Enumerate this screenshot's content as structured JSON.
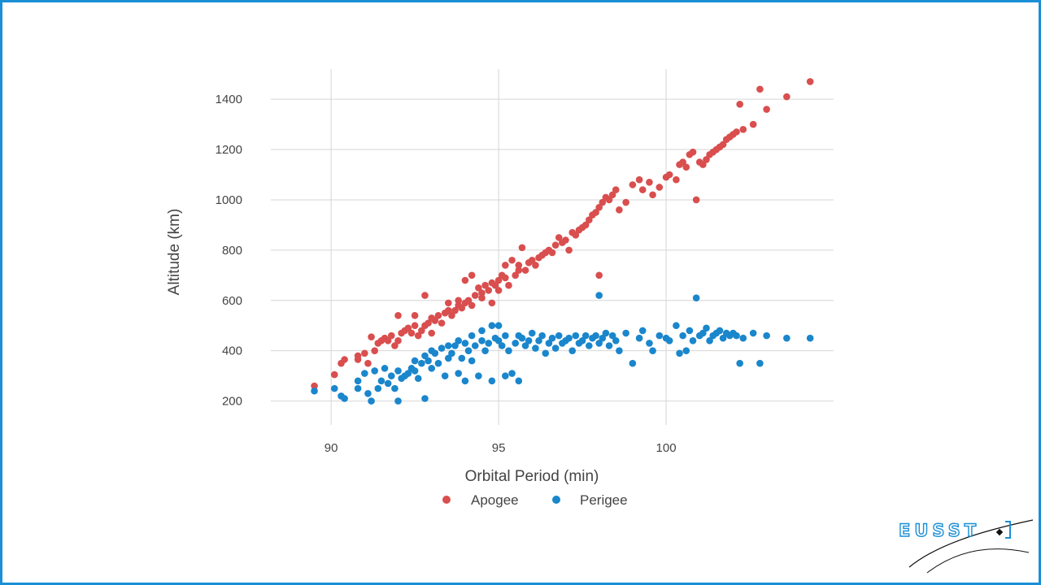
{
  "chart_data": {
    "type": "scatter",
    "xlabel": "Orbital Period (min)",
    "ylabel": "Altitude (km)",
    "xlim": [
      88.2,
      105.0
    ],
    "ylim": [
      105,
      1520
    ],
    "x_ticks": [
      90,
      95,
      100
    ],
    "y_ticks": [
      200,
      400,
      600,
      800,
      1000,
      1200,
      1400
    ],
    "grid": true,
    "legend_position": "bottom-center",
    "series": [
      {
        "name": "Apogee",
        "color": "#d94e4e",
        "points": [
          [
            89.5,
            260
          ],
          [
            90.1,
            305
          ],
          [
            90.3,
            350
          ],
          [
            90.4,
            365
          ],
          [
            90.8,
            365
          ],
          [
            90.8,
            380
          ],
          [
            91.0,
            390
          ],
          [
            91.1,
            350
          ],
          [
            91.2,
            455
          ],
          [
            91.3,
            400
          ],
          [
            91.4,
            430
          ],
          [
            91.5,
            440
          ],
          [
            91.6,
            450
          ],
          [
            91.7,
            440
          ],
          [
            91.8,
            460
          ],
          [
            91.9,
            420
          ],
          [
            92.0,
            540
          ],
          [
            92.0,
            440
          ],
          [
            92.1,
            470
          ],
          [
            92.2,
            480
          ],
          [
            92.3,
            490
          ],
          [
            92.4,
            470
          ],
          [
            92.5,
            500
          ],
          [
            92.5,
            540
          ],
          [
            92.6,
            460
          ],
          [
            92.7,
            480
          ],
          [
            92.8,
            500
          ],
          [
            92.8,
            620
          ],
          [
            92.9,
            510
          ],
          [
            93.0,
            530
          ],
          [
            93.0,
            470
          ],
          [
            93.1,
            520
          ],
          [
            93.2,
            540
          ],
          [
            93.3,
            510
          ],
          [
            93.4,
            550
          ],
          [
            93.5,
            560
          ],
          [
            93.5,
            590
          ],
          [
            93.6,
            540
          ],
          [
            93.7,
            560
          ],
          [
            93.8,
            580
          ],
          [
            93.8,
            600
          ],
          [
            93.9,
            570
          ],
          [
            94.0,
            590
          ],
          [
            94.0,
            680
          ],
          [
            94.1,
            600
          ],
          [
            94.2,
            580
          ],
          [
            94.2,
            700
          ],
          [
            94.3,
            620
          ],
          [
            94.4,
            650
          ],
          [
            94.5,
            610
          ],
          [
            94.5,
            630
          ],
          [
            94.6,
            660
          ],
          [
            94.7,
            640
          ],
          [
            94.8,
            670
          ],
          [
            94.8,
            590
          ],
          [
            94.9,
            660
          ],
          [
            95.0,
            680
          ],
          [
            95.0,
            640
          ],
          [
            95.1,
            700
          ],
          [
            95.2,
            690
          ],
          [
            95.2,
            740
          ],
          [
            95.3,
            660
          ],
          [
            95.4,
            760
          ],
          [
            95.5,
            700
          ],
          [
            95.6,
            720
          ],
          [
            95.6,
            740
          ],
          [
            95.7,
            810
          ],
          [
            95.8,
            720
          ],
          [
            95.9,
            750
          ],
          [
            96.0,
            760
          ],
          [
            96.1,
            740
          ],
          [
            96.2,
            770
          ],
          [
            96.3,
            780
          ],
          [
            96.4,
            790
          ],
          [
            96.5,
            800
          ],
          [
            96.6,
            790
          ],
          [
            96.7,
            820
          ],
          [
            96.8,
            850
          ],
          [
            96.9,
            830
          ],
          [
            97.0,
            840
          ],
          [
            97.1,
            800
          ],
          [
            97.2,
            870
          ],
          [
            97.3,
            860
          ],
          [
            97.4,
            880
          ],
          [
            97.5,
            890
          ],
          [
            97.6,
            900
          ],
          [
            97.7,
            920
          ],
          [
            97.8,
            940
          ],
          [
            97.9,
            950
          ],
          [
            98.0,
            970
          ],
          [
            98.0,
            700
          ],
          [
            98.1,
            990
          ],
          [
            98.2,
            1010
          ],
          [
            98.3,
            1000
          ],
          [
            98.4,
            1020
          ],
          [
            98.5,
            1040
          ],
          [
            98.6,
            960
          ],
          [
            98.8,
            990
          ],
          [
            99.0,
            1060
          ],
          [
            99.2,
            1080
          ],
          [
            99.3,
            1040
          ],
          [
            99.5,
            1070
          ],
          [
            99.6,
            1020
          ],
          [
            99.8,
            1050
          ],
          [
            100.0,
            1090
          ],
          [
            100.1,
            1100
          ],
          [
            100.3,
            1080
          ],
          [
            100.4,
            1140
          ],
          [
            100.5,
            1150
          ],
          [
            100.6,
            1130
          ],
          [
            100.7,
            1180
          ],
          [
            100.8,
            1190
          ],
          [
            100.9,
            1000
          ],
          [
            101.0,
            1150
          ],
          [
            101.1,
            1140
          ],
          [
            101.2,
            1160
          ],
          [
            101.3,
            1180
          ],
          [
            101.4,
            1190
          ],
          [
            101.5,
            1200
          ],
          [
            101.6,
            1210
          ],
          [
            101.7,
            1220
          ],
          [
            101.8,
            1240
          ],
          [
            101.9,
            1250
          ],
          [
            102.0,
            1260
          ],
          [
            102.1,
            1270
          ],
          [
            102.2,
            1380
          ],
          [
            102.3,
            1280
          ],
          [
            102.6,
            1300
          ],
          [
            102.8,
            1440
          ],
          [
            103.0,
            1360
          ],
          [
            103.6,
            1410
          ],
          [
            104.3,
            1470
          ]
        ]
      },
      {
        "name": "Perigee",
        "color": "#1a86cc",
        "points": [
          [
            89.5,
            240
          ],
          [
            90.1,
            250
          ],
          [
            90.3,
            220
          ],
          [
            90.4,
            210
          ],
          [
            90.8,
            250
          ],
          [
            90.8,
            280
          ],
          [
            91.0,
            310
          ],
          [
            91.1,
            230
          ],
          [
            91.2,
            200
          ],
          [
            91.3,
            320
          ],
          [
            91.4,
            250
          ],
          [
            91.5,
            280
          ],
          [
            91.6,
            330
          ],
          [
            91.7,
            270
          ],
          [
            91.8,
            300
          ],
          [
            91.9,
            250
          ],
          [
            92.0,
            200
          ],
          [
            92.0,
            320
          ],
          [
            92.1,
            290
          ],
          [
            92.2,
            300
          ],
          [
            92.3,
            310
          ],
          [
            92.4,
            330
          ],
          [
            92.5,
            320
          ],
          [
            92.5,
            360
          ],
          [
            92.6,
            290
          ],
          [
            92.7,
            350
          ],
          [
            92.8,
            210
          ],
          [
            92.8,
            380
          ],
          [
            92.9,
            360
          ],
          [
            93.0,
            400
          ],
          [
            93.0,
            330
          ],
          [
            93.1,
            390
          ],
          [
            93.2,
            350
          ],
          [
            93.3,
            410
          ],
          [
            93.4,
            300
          ],
          [
            93.5,
            420
          ],
          [
            93.5,
            370
          ],
          [
            93.6,
            390
          ],
          [
            93.7,
            420
          ],
          [
            93.8,
            310
          ],
          [
            93.8,
            440
          ],
          [
            93.9,
            370
          ],
          [
            94.0,
            430
          ],
          [
            94.0,
            280
          ],
          [
            94.1,
            400
          ],
          [
            94.2,
            460
          ],
          [
            94.2,
            360
          ],
          [
            94.3,
            420
          ],
          [
            94.4,
            300
          ],
          [
            94.5,
            440
          ],
          [
            94.5,
            480
          ],
          [
            94.6,
            400
          ],
          [
            94.7,
            430
          ],
          [
            94.8,
            500
          ],
          [
            94.8,
            280
          ],
          [
            94.9,
            450
          ],
          [
            95.0,
            500
          ],
          [
            95.0,
            440
          ],
          [
            95.1,
            420
          ],
          [
            95.2,
            300
          ],
          [
            95.2,
            460
          ],
          [
            95.3,
            400
          ],
          [
            95.4,
            310
          ],
          [
            95.5,
            430
          ],
          [
            95.6,
            280
          ],
          [
            95.6,
            460
          ],
          [
            95.7,
            450
          ],
          [
            95.8,
            420
          ],
          [
            95.9,
            440
          ],
          [
            96.0,
            470
          ],
          [
            96.1,
            410
          ],
          [
            96.2,
            440
          ],
          [
            96.3,
            460
          ],
          [
            96.4,
            390
          ],
          [
            96.5,
            430
          ],
          [
            96.6,
            450
          ],
          [
            96.7,
            410
          ],
          [
            96.8,
            460
          ],
          [
            96.9,
            430
          ],
          [
            97.0,
            440
          ],
          [
            97.1,
            450
          ],
          [
            97.2,
            400
          ],
          [
            97.3,
            460
          ],
          [
            97.4,
            430
          ],
          [
            97.5,
            440
          ],
          [
            97.6,
            460
          ],
          [
            97.7,
            420
          ],
          [
            97.8,
            450
          ],
          [
            97.9,
            460
          ],
          [
            98.0,
            620
          ],
          [
            98.0,
            430
          ],
          [
            98.1,
            450
          ],
          [
            98.2,
            470
          ],
          [
            98.3,
            420
          ],
          [
            98.4,
            460
          ],
          [
            98.5,
            440
          ],
          [
            98.6,
            400
          ],
          [
            98.8,
            470
          ],
          [
            99.0,
            350
          ],
          [
            99.2,
            450
          ],
          [
            99.3,
            480
          ],
          [
            99.5,
            430
          ],
          [
            99.6,
            400
          ],
          [
            99.8,
            460
          ],
          [
            100.0,
            450
          ],
          [
            100.1,
            440
          ],
          [
            100.3,
            500
          ],
          [
            100.4,
            390
          ],
          [
            100.5,
            460
          ],
          [
            100.6,
            400
          ],
          [
            100.7,
            480
          ],
          [
            100.8,
            440
          ],
          [
            100.9,
            610
          ],
          [
            101.0,
            460
          ],
          [
            101.1,
            470
          ],
          [
            101.2,
            490
          ],
          [
            101.3,
            440
          ],
          [
            101.4,
            460
          ],
          [
            101.5,
            470
          ],
          [
            101.6,
            480
          ],
          [
            101.7,
            450
          ],
          [
            101.8,
            470
          ],
          [
            101.9,
            460
          ],
          [
            102.0,
            470
          ],
          [
            102.1,
            460
          ],
          [
            102.2,
            350
          ],
          [
            102.3,
            450
          ],
          [
            102.6,
            470
          ],
          [
            102.8,
            350
          ],
          [
            103.0,
            460
          ],
          [
            103.6,
            450
          ],
          [
            104.3,
            450
          ]
        ]
      }
    ]
  },
  "logo": {
    "text": "EUSST"
  }
}
